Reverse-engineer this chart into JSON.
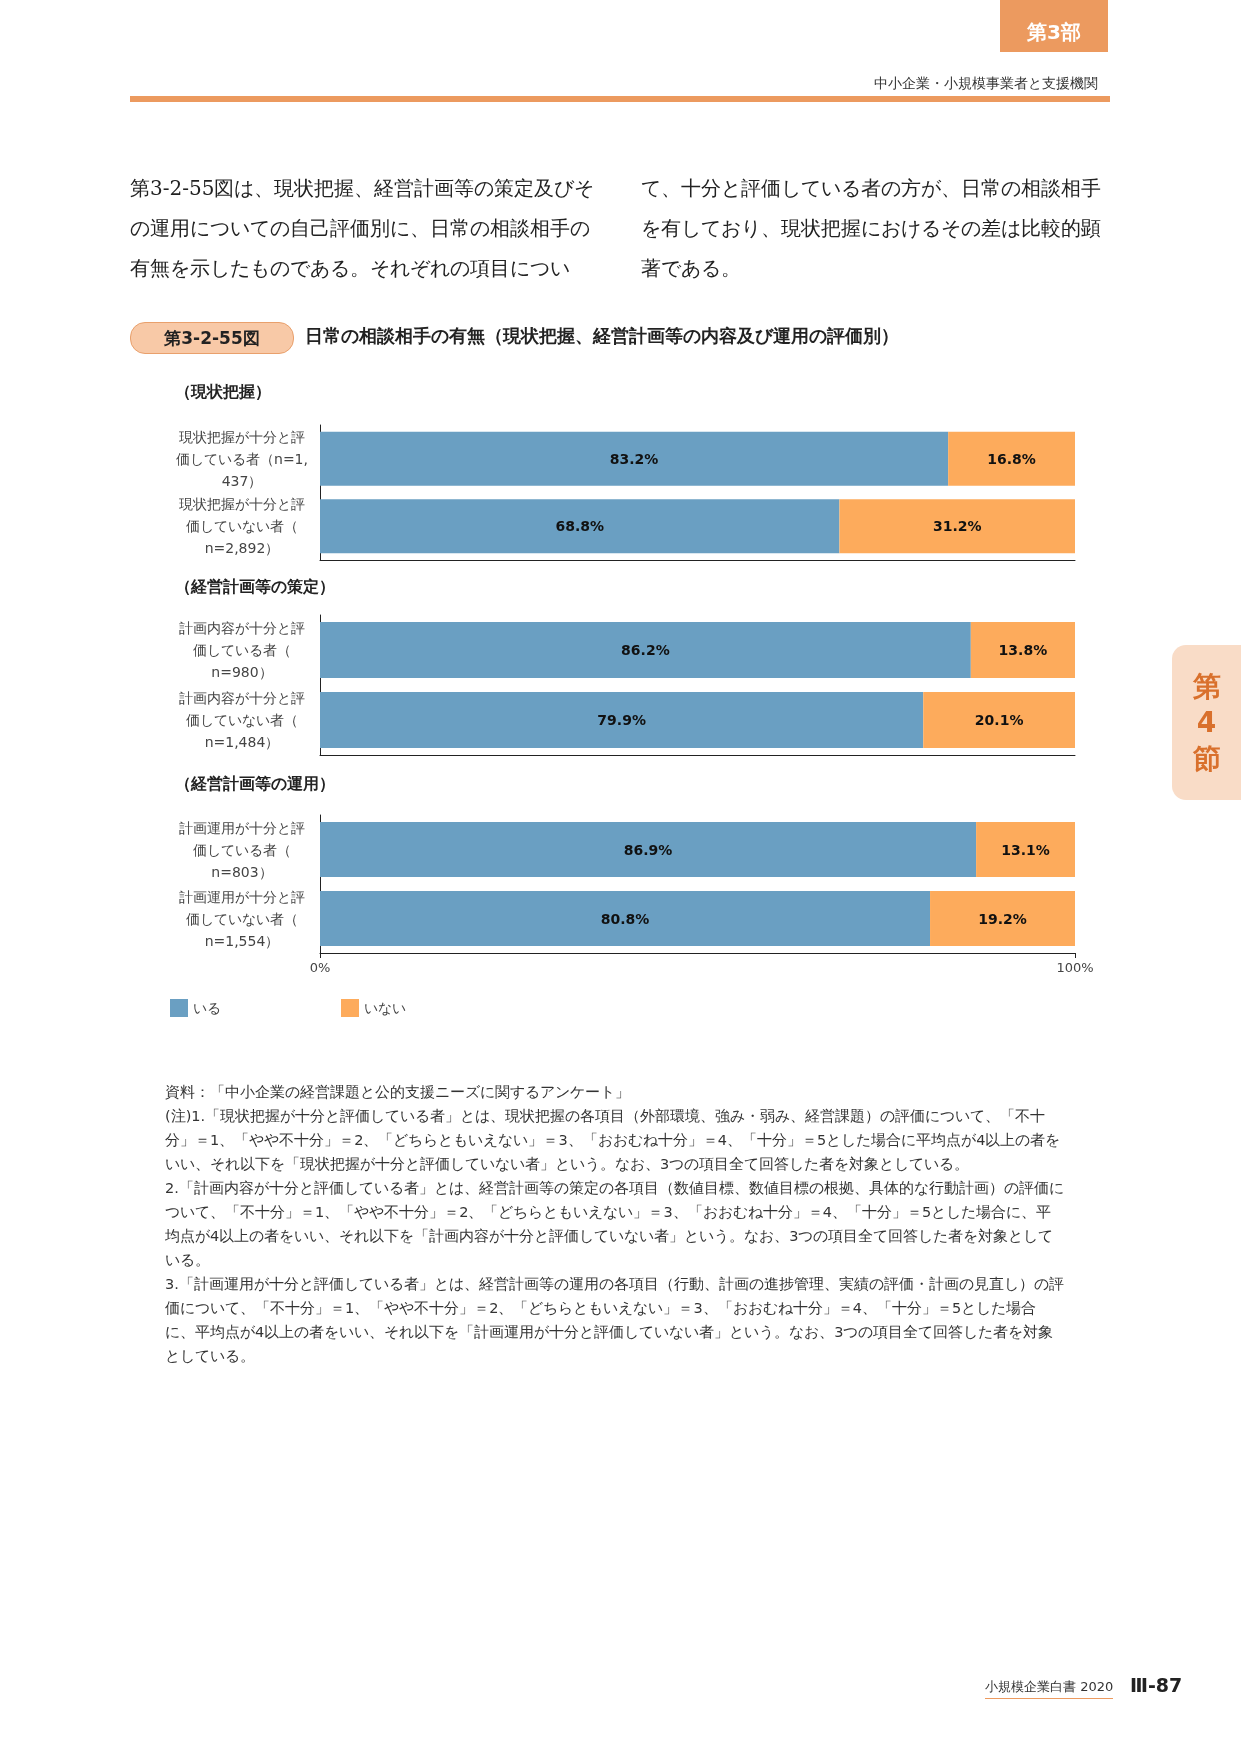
{
  "chart_data": [
    {
      "type": "bar",
      "orientation": "horizontal",
      "stacked": true,
      "title": "日常の相談相手の有無（現状把握、経営計画等の内容及び運用の評価別）",
      "subtitle": "（現状把握）",
      "categories": [
        "現状把握が十分と評価している者（n=1,437）",
        "現状把握が十分と評価していない者（n=2,892）"
      ],
      "series": [
        {
          "color": "#6a9fc2",
          "values": [
            83.2,
            68.8
          ],
          "value_labels": [
            "83.2%",
            "68.8%"
          ]
        },
        {
          "color": "#fdab5c",
          "values": [
            16.8,
            31.2
          ],
          "value_labels": [
            "16.8%",
            "31.2%"
          ]
        }
      ],
      "xlim": [
        0,
        100
      ],
      "tick_labels": "y",
      "grid": false,
      "legend": false,
      "annotations": [
        "第3-2-55図",
        "第3部",
        "中小企業・小規模事業者と支援機関",
        "第3-2-55図は、現状把握、経営計画等の策定及びその運用についての自己評価別に、日常の相談相手の有無を示したものである。それぞれの項目について、十分と評価している者の方が、日常の相談相手を有しており、現状把握におけるその差は比較的顕著である。",
        "第4節",
        "小規模企業白書 2020",
        "Ⅲ-87"
      ]
    },
    {
      "type": "bar",
      "orientation": "horizontal",
      "stacked": true,
      "subtitle": "（経営計画等の策定）",
      "categories": [
        "計画内容が十分と評価している者（n=980）",
        "計画内容が十分と評価していない者（n=1,484）"
      ],
      "series": [
        {
          "color": "#6a9fc2",
          "values": [
            86.2,
            79.9
          ],
          "value_labels": [
            "86.2%",
            "79.9%"
          ]
        },
        {
          "color": "#fdab5c",
          "values": [
            13.8,
            20.1
          ],
          "value_labels": [
            "13.8%",
            "20.1%"
          ]
        }
      ],
      "xlim": [
        0,
        100
      ],
      "tick_labels": "y",
      "grid": false,
      "legend": false
    },
    {
      "type": "bar",
      "orientation": "horizontal",
      "stacked": true,
      "subtitle": "（経営計画等の運用）",
      "categories": [
        "計画運用が十分と評価している者（n=803）",
        "計画運用が十分と評価していない者（n=1,554）"
      ],
      "series": [
        {
          "name": "いる",
          "color": "#6a9fc2",
          "values": [
            86.9,
            80.8
          ],
          "value_labels": [
            "86.9%",
            "80.8%"
          ]
        },
        {
          "name": "いない",
          "color": "#fdab5c",
          "values": [
            13.1,
            19.2
          ],
          "value_labels": [
            "13.1%",
            "19.2%"
          ]
        }
      ],
      "xlim": [
        0,
        100
      ],
      "xticks": [
        {
          "value": 0,
          "label": "0%"
        },
        {
          "value": 100,
          "label": "100%"
        }
      ],
      "grid": false,
      "legend": "bottom left",
      "annotations": [
        "資料：「中小企業の経営課題と公的支援ニーズに関するアンケート」",
        "(注)1.「現状把握が十分と評価している者」とは、現状把握の各項目（外部環境、強み・弱み、経営課題）の評価について、「不十分」＝1、「やや不十分」＝2、「どちらともいえない」＝3、「おおむね十分」＝4、「十分」＝5とした場合に平均点が4以上の者をいい、それ以下を「現状把握が十分と評価していない者」という。なお、3つの項目全て回答した者を対象としている。",
        "2.「計画内容が十分と評価している者」とは、経営計画等の策定の各項目（数値目標、数値目標の根拠、具体的な行動計画）の評価について、「不十分」＝1、「やや不十分」＝2、「どちらともいえない」＝3、「おおむね十分」＝4、「十分」＝5とした場合に、平均点が4以上の者をいい、それ以下を「計画内容が十分と評価していない者」という。なお、3つの項目全て回答した者を対象としている。",
        "3.「計画運用が十分と評価している者」とは、経営計画等の運用の各項目（行動、計画の進捗管理、実績の評価・計画の見直し）の評価について、「不十分」＝1、「やや不十分」＝2、「どちらともいえない」＝3、「おおむね十分」＝4、「十分」＝5とした場合に、平均点が4以上の者をいい、それ以下を「計画運用が十分と評価していない者」という。なお、3つの項目全て回答した者を対象としている。"
      ]
    }
  ]
}
